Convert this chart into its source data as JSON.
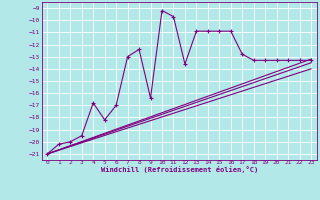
{
  "xlabel": "Windchill (Refroidissement éolien,°C)",
  "bg_color": "#b2e8e8",
  "grid_color": "#ffffff",
  "line_color": "#800080",
  "xlim": [
    -0.5,
    23.5
  ],
  "ylim": [
    -21.5,
    -8.5
  ],
  "xticks": [
    0,
    1,
    2,
    3,
    4,
    5,
    6,
    7,
    8,
    9,
    10,
    11,
    12,
    13,
    14,
    15,
    16,
    17,
    18,
    19,
    20,
    21,
    22,
    23
  ],
  "yticks": [
    -21,
    -20,
    -19,
    -18,
    -17,
    -16,
    -15,
    -14,
    -13,
    -12,
    -11,
    -10,
    -9
  ],
  "main_x": [
    0,
    1,
    2,
    3,
    4,
    5,
    6,
    7,
    8,
    9,
    10,
    11,
    12,
    13,
    14,
    15,
    16,
    17,
    18,
    19,
    20,
    21,
    22,
    23
  ],
  "main_y": [
    -21.0,
    -20.2,
    -20.0,
    -19.5,
    -16.8,
    -18.2,
    -17.0,
    -13.0,
    -12.4,
    -16.4,
    -9.2,
    -9.7,
    -13.6,
    -10.9,
    -10.9,
    -10.9,
    -10.9,
    -12.8,
    -13.3,
    -13.3,
    -13.3,
    -13.3,
    -13.3,
    -13.3
  ],
  "line1_x": [
    0,
    23
  ],
  "line1_y": [
    -21.0,
    -13.2
  ],
  "line2_x": [
    0,
    23
  ],
  "line2_y": [
    -21.0,
    -13.5
  ],
  "line3_x": [
    0,
    23
  ],
  "line3_y": [
    -21.0,
    -14.0
  ]
}
